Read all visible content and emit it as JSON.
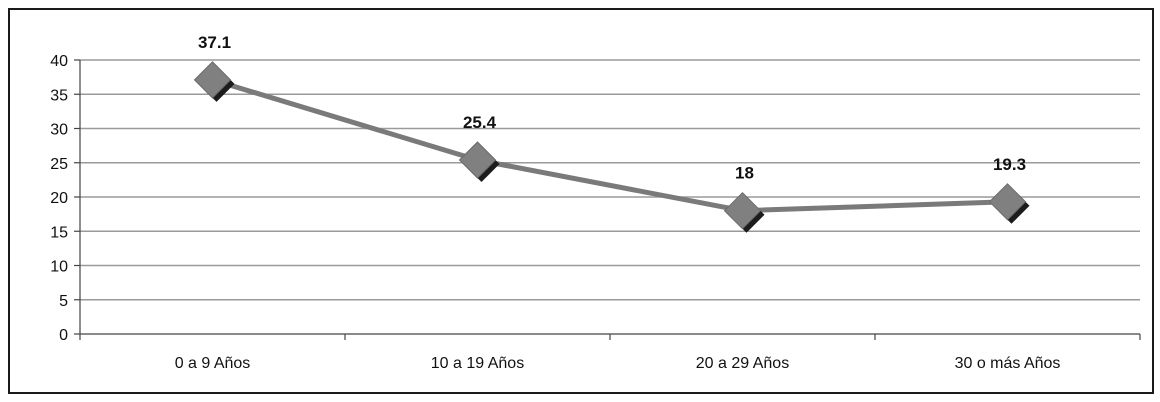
{
  "chart_data": {
    "type": "line",
    "categories": [
      "0 a 9 Años",
      "10 a 19 Años",
      "20 a 29 Años",
      "30 o más Años"
    ],
    "series": [
      {
        "values": [
          37.1,
          25.4,
          18,
          19.3
        ]
      }
    ],
    "data_labels": [
      "37.1",
      "25.4",
      "18",
      "19.3"
    ],
    "y_ticks": [
      "0",
      "5",
      "10",
      "15",
      "20",
      "25",
      "30",
      "35",
      "40"
    ],
    "ylim": [
      0,
      40
    ],
    "grid": true,
    "marker": "diamond",
    "colors": {
      "line": "#7a7a7a",
      "marker": "#808080",
      "marker_shadow": "#1c1c1c",
      "grid": "#9a9a9a"
    }
  }
}
